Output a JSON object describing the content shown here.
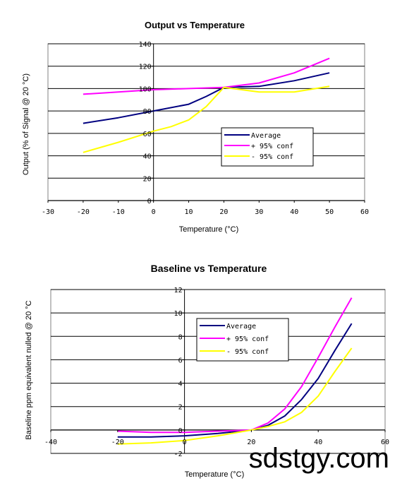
{
  "watermark": "sdstgy.com",
  "chart_data": [
    {
      "type": "line",
      "title": "Output vs Temperature",
      "xlabel": "Temperature (°C)",
      "ylabel": "Output (% of Signal @ 20 °C)",
      "xlim": [
        -30,
        60
      ],
      "ylim": [
        0,
        140
      ],
      "xticks": [
        -30,
        -20,
        -10,
        0,
        10,
        20,
        30,
        40,
        50,
        60
      ],
      "yticks": [
        0,
        20,
        40,
        60,
        80,
        100,
        120,
        140
      ],
      "grid": "horizontal",
      "legend": "center-right",
      "series": [
        {
          "name": "Average",
          "color": "#000080",
          "x": [
            -20,
            -10,
            0,
            10,
            15,
            20,
            30,
            40,
            50
          ],
          "y": [
            69,
            74,
            80,
            86,
            93,
            101,
            102,
            107,
            114
          ]
        },
        {
          "name": "+ 95% conf",
          "color": "#ff00ff",
          "x": [
            -20,
            -10,
            0,
            10,
            20,
            30,
            40,
            50
          ],
          "y": [
            95,
            97,
            99,
            100,
            101,
            105,
            114,
            127
          ]
        },
        {
          "name": "- 95% conf",
          "color": "#ffff00",
          "x": [
            -20,
            -10,
            0,
            5,
            10,
            15,
            20,
            30,
            40,
            50
          ],
          "y": [
            43,
            52,
            62,
            66,
            72,
            84,
            101,
            97,
            97,
            102
          ]
        }
      ]
    },
    {
      "type": "line",
      "title": "Baseline vs Temperature",
      "xlabel": "Temperature (°C)",
      "ylabel": "Baseline ppm equivalent nulled @ 20 °C",
      "xlim": [
        -40,
        60
      ],
      "ylim": [
        -2,
        12
      ],
      "xticks": [
        -40,
        -20,
        0,
        20,
        40,
        60
      ],
      "yticks": [
        -2,
        0,
        2,
        4,
        6,
        8,
        10,
        12
      ],
      "grid": "horizontal",
      "legend": "top-center",
      "series": [
        {
          "name": "Average",
          "color": "#000080",
          "x": [
            -20,
            -10,
            0,
            10,
            20,
            25,
            30,
            35,
            40,
            45,
            50
          ],
          "y": [
            -0.6,
            -0.6,
            -0.5,
            -0.3,
            0,
            0.4,
            1.2,
            2.6,
            4.4,
            6.8,
            9.1
          ]
        },
        {
          "name": "+ 95% conf",
          "color": "#ff00ff",
          "x": [
            -20,
            -10,
            0,
            10,
            20,
            25,
            30,
            35,
            40,
            45,
            50
          ],
          "y": [
            -0.1,
            -0.2,
            -0.2,
            -0.1,
            0,
            0.6,
            1.8,
            3.7,
            6.2,
            8.8,
            11.3
          ]
        },
        {
          "name": "- 95% conf",
          "color": "#ffff00",
          "x": [
            -20,
            -10,
            0,
            10,
            20,
            25,
            30,
            35,
            40,
            45,
            50
          ],
          "y": [
            -1.2,
            -1.1,
            -0.9,
            -0.5,
            0,
            0.3,
            0.7,
            1.5,
            2.9,
            5.0,
            7.0
          ]
        }
      ]
    }
  ]
}
